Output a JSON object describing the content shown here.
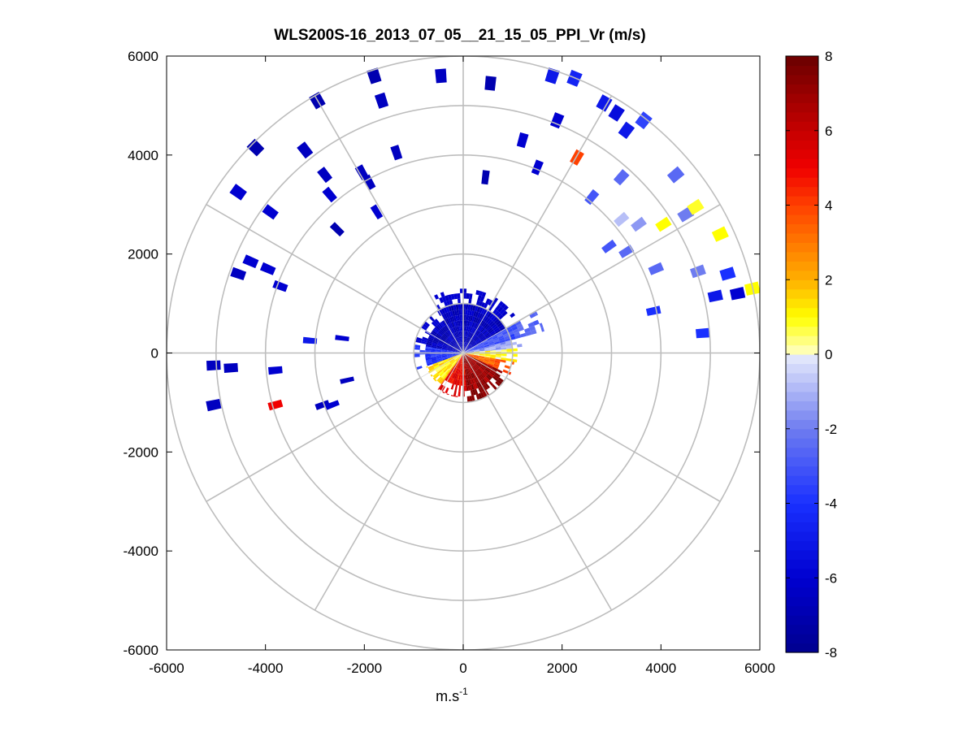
{
  "chart_data": {
    "type": "heatmap",
    "subtype": "polar-ppi-scan",
    "title": "WLS200S-16_2013_07_05__21_15_05_PPI_Vr (m/s)",
    "xlabel": "m.s",
    "xlabel_superscript": "-1",
    "ylabel": "",
    "xlim": [
      -6000,
      6000
    ],
    "ylim": [
      -6000,
      6000
    ],
    "x_ticks": [
      "-6000",
      "-4000",
      "-2000",
      "0",
      "2000",
      "4000",
      "6000"
    ],
    "y_ticks": [
      "6000",
      "4000",
      "2000",
      "0",
      "-2000",
      "-4000",
      "-6000"
    ],
    "range_rings_m": [
      1000,
      2000,
      3000,
      4000,
      5000,
      6000
    ],
    "spoke_angles_deg": [
      0,
      30,
      60,
      90,
      120,
      150,
      180,
      210,
      240,
      270,
      300,
      330
    ],
    "colorbar": {
      "min": -8,
      "max": 8,
      "ticks": [
        "8",
        "6",
        "4",
        "2",
        "0",
        "-2",
        "-4",
        "-6",
        "-8"
      ],
      "stops": [
        {
          "v": -8,
          "color": "#00008f"
        },
        {
          "v": -6,
          "color": "#0000d0"
        },
        {
          "v": -4,
          "color": "#1a30ff"
        },
        {
          "v": -2,
          "color": "#6e7cf0"
        },
        {
          "v": 0,
          "color": "#e8ecfc"
        },
        {
          "v": 0.01,
          "color": "#ffffc8"
        },
        {
          "v": 1,
          "color": "#ffff00"
        },
        {
          "v": 2,
          "color": "#ffb000"
        },
        {
          "v": 4,
          "color": "#ff4000"
        },
        {
          "v": 5,
          "color": "#f00000"
        },
        {
          "v": 6.5,
          "color": "#b00000"
        },
        {
          "v": 8,
          "color": "#6a0000"
        }
      ]
    },
    "series": [
      {
        "name": "near-field sector 330-60 deg",
        "r_min": 0,
        "r_max": 1300,
        "az_start": 330,
        "az_end": 60,
        "velocity": -6.5
      },
      {
        "name": "near-field sector 60-75 deg",
        "r_min": 0,
        "r_max": 1700,
        "az_start": 60,
        "az_end": 75,
        "velocity": -3.0
      },
      {
        "name": "near-field sector 75-85 deg",
        "r_min": 0,
        "r_max": 1200,
        "az_start": 75,
        "az_end": 85,
        "velocity": -1.5
      },
      {
        "name": "near-field sector 85-100 deg",
        "r_min": 0,
        "r_max": 1100,
        "az_start": 85,
        "az_end": 100,
        "velocity": 0.6
      },
      {
        "name": "near-field sector 100-115 deg",
        "r_min": 0,
        "r_max": 1050,
        "az_start": 100,
        "az_end": 115,
        "velocity": 3.5
      },
      {
        "name": "near-field sector 115-175 deg",
        "r_min": 0,
        "r_max": 1000,
        "az_start": 115,
        "az_end": 175,
        "velocity": 7.0
      },
      {
        "name": "near-field sector 175-215 deg",
        "r_min": 0,
        "r_max": 900,
        "az_start": 175,
        "az_end": 215,
        "velocity": 5.0
      },
      {
        "name": "near-field sector 215-250 deg",
        "r_min": 0,
        "r_max": 800,
        "az_start": 215,
        "az_end": 250,
        "velocity": 1.2
      },
      {
        "name": "near-field sector 250-280 deg",
        "r_min": 0,
        "r_max": 1000,
        "az_start": 250,
        "az_end": 280,
        "velocity": -4.0
      },
      {
        "name": "near-field sector 280-330 deg",
        "r_min": 0,
        "r_max": 1000,
        "az_start": 280,
        "az_end": 330,
        "velocity": -6.5
      }
    ],
    "sparse_returns": [
      {
        "x": -1800,
        "y": 5600,
        "v": -7
      },
      {
        "x": -450,
        "y": 5600,
        "v": -6.5
      },
      {
        "x": 550,
        "y": 5450,
        "v": -7
      },
      {
        "x": 1800,
        "y": 5600,
        "v": -5
      },
      {
        "x": 2250,
        "y": 5550,
        "v": -4.5
      },
      {
        "x": -2950,
        "y": 5100,
        "v": -7
      },
      {
        "x": -1650,
        "y": 5100,
        "v": -6.5
      },
      {
        "x": 2850,
        "y": 5050,
        "v": -5
      },
      {
        "x": 3100,
        "y": 4850,
        "v": -5.5
      },
      {
        "x": -4200,
        "y": 4150,
        "v": -7
      },
      {
        "x": -3200,
        "y": 4100,
        "v": -6.5
      },
      {
        "x": -1350,
        "y": 4050,
        "v": -6.5
      },
      {
        "x": 1200,
        "y": 4300,
        "v": -6
      },
      {
        "x": 1900,
        "y": 4700,
        "v": -6
      },
      {
        "x": 3650,
        "y": 4700,
        "v": -3.5
      },
      {
        "x": 3300,
        "y": 4500,
        "v": -5
      },
      {
        "x": 2300,
        "y": 3950,
        "v": 4
      },
      {
        "x": 1500,
        "y": 3750,
        "v": -6
      },
      {
        "x": -4550,
        "y": 3250,
        "v": -6
      },
      {
        "x": -2800,
        "y": 3600,
        "v": -6.5
      },
      {
        "x": -2050,
        "y": 3650,
        "v": -6.5
      },
      {
        "x": -1900,
        "y": 3450,
        "v": -6.5
      },
      {
        "x": 450,
        "y": 3550,
        "v": -7
      },
      {
        "x": 3200,
        "y": 3550,
        "v": -2.5
      },
      {
        "x": 4300,
        "y": 3600,
        "v": -2.5
      },
      {
        "x": -3900,
        "y": 2850,
        "v": -6
      },
      {
        "x": -2700,
        "y": 3200,
        "v": -6
      },
      {
        "x": -2550,
        "y": 2500,
        "v": -7
      },
      {
        "x": -1750,
        "y": 2850,
        "v": -6
      },
      {
        "x": 2600,
        "y": 3150,
        "v": -3
      },
      {
        "x": 3200,
        "y": 2700,
        "v": -0.8
      },
      {
        "x": 3550,
        "y": 2600,
        "v": -1.5
      },
      {
        "x": 4050,
        "y": 2600,
        "v": 1
      },
      {
        "x": 4500,
        "y": 2800,
        "v": -2
      },
      {
        "x": 4700,
        "y": 2950,
        "v": 0.8
      },
      {
        "x": 5200,
        "y": 2400,
        "v": 1
      },
      {
        "x": -4300,
        "y": 1850,
        "v": -6
      },
      {
        "x": -3950,
        "y": 1700,
        "v": -6
      },
      {
        "x": -4550,
        "y": 1600,
        "v": -6.5
      },
      {
        "x": -3700,
        "y": 1350,
        "v": -6
      },
      {
        "x": 2950,
        "y": 2150,
        "v": -3
      },
      {
        "x": 3300,
        "y": 2050,
        "v": -2.5
      },
      {
        "x": 3900,
        "y": 1700,
        "v": -2.5
      },
      {
        "x": 4750,
        "y": 1650,
        "v": -2
      },
      {
        "x": 5350,
        "y": 1600,
        "v": -4
      },
      {
        "x": 5100,
        "y": 1150,
        "v": -5
      },
      {
        "x": 5550,
        "y": 1200,
        "v": -6
      },
      {
        "x": 5850,
        "y": 1300,
        "v": 1
      },
      {
        "x": 3850,
        "y": 850,
        "v": -4
      },
      {
        "x": 4850,
        "y": 400,
        "v": -4
      },
      {
        "x": -3100,
        "y": 250,
        "v": -5
      },
      {
        "x": -2450,
        "y": 300,
        "v": -6
      },
      {
        "x": -5050,
        "y": -250,
        "v": -6.5
      },
      {
        "x": -4700,
        "y": -300,
        "v": -6.5
      },
      {
        "x": -3800,
        "y": -350,
        "v": -6
      },
      {
        "x": -2350,
        "y": -550,
        "v": -6.5
      },
      {
        "x": -5050,
        "y": -1050,
        "v": -6.5
      },
      {
        "x": -3800,
        "y": -1050,
        "v": 5
      },
      {
        "x": -2850,
        "y": -1050,
        "v": -6.5
      },
      {
        "x": -2650,
        "y": -1050,
        "v": -6
      }
    ]
  }
}
